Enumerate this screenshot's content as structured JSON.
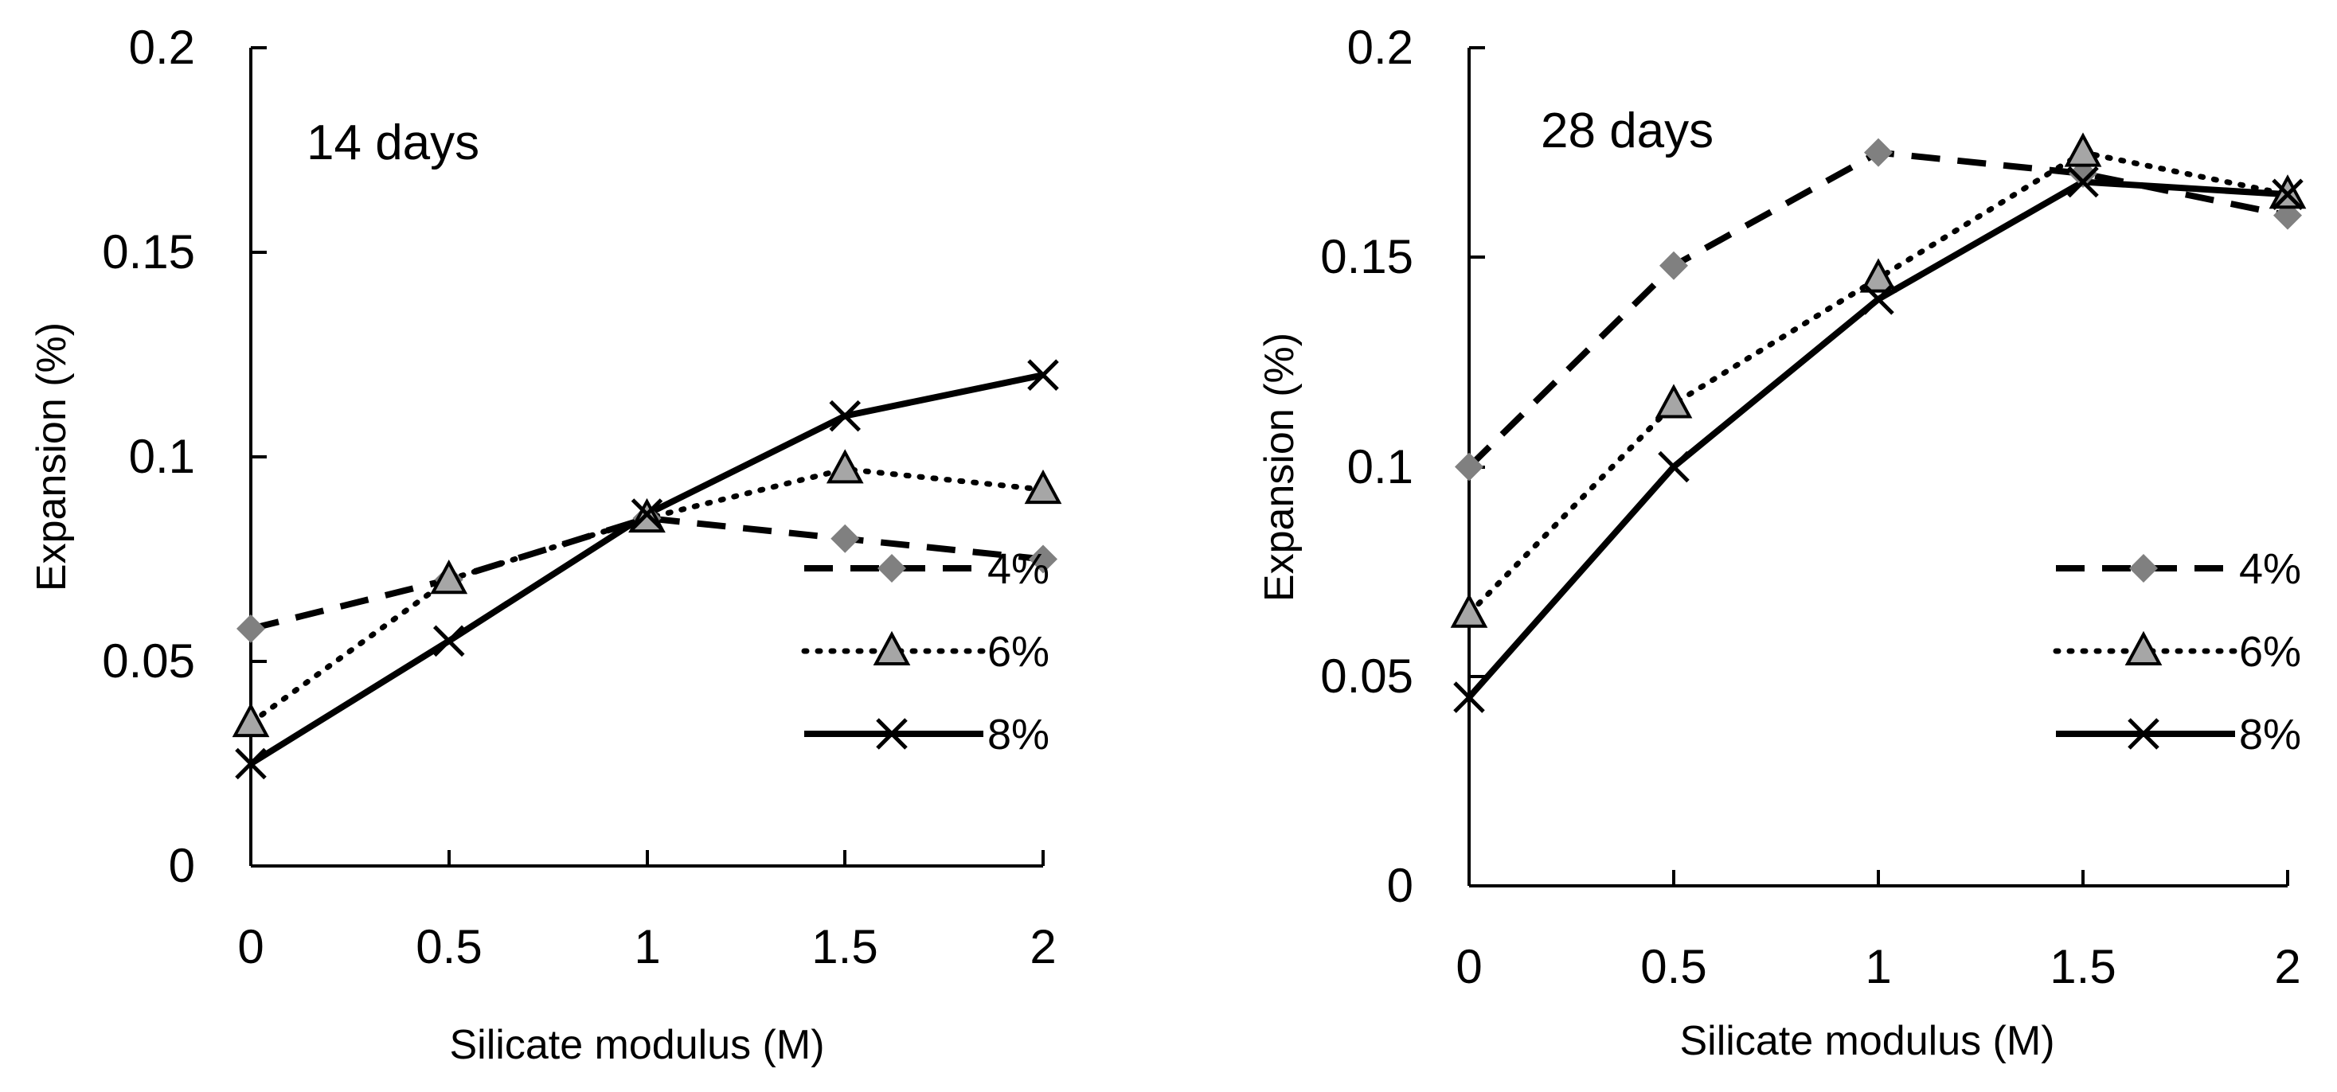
{
  "chart_data": [
    {
      "type": "line",
      "annotation": "14 days",
      "xlabel": "Silicate modulus (M)",
      "ylabel": "Expansion (%)",
      "x": [
        0,
        0.5,
        1,
        1.5,
        2
      ],
      "x_tick_labels": [
        "0",
        "0.5",
        "1",
        "1.5",
        "2"
      ],
      "ylim": [
        0,
        0.2
      ],
      "y_ticks": [
        0,
        0.05,
        0.1,
        0.15,
        0.2
      ],
      "y_tick_labels": [
        "0",
        "0.05",
        "0.1",
        "0.15",
        "0.2"
      ],
      "grid": false,
      "legend_position": "right",
      "series": [
        {
          "name": "4%",
          "values": [
            0.058,
            0.07,
            0.085,
            0.08,
            0.075
          ],
          "line_style": "dashed",
          "marker": "diamond",
          "color": "#808080"
        },
        {
          "name": "6%",
          "values": [
            0.035,
            0.07,
            0.085,
            0.097,
            0.092
          ],
          "line_style": "dotted",
          "marker": "triangle",
          "color": "#a6a6a6"
        },
        {
          "name": "8%",
          "values": [
            0.025,
            0.055,
            0.086,
            0.11,
            0.12
          ],
          "line_style": "solid",
          "marker": "x",
          "color": "#000000"
        }
      ]
    },
    {
      "type": "line",
      "annotation": "28 days",
      "xlabel": "Silicate modulus (M)",
      "ylabel": "Expansion (%)",
      "x": [
        0,
        0.5,
        1,
        1.5,
        2
      ],
      "x_tick_labels": [
        "0",
        "0.5",
        "1",
        "1.5",
        "2"
      ],
      "ylim": [
        0,
        0.2
      ],
      "y_ticks": [
        0,
        0.05,
        0.1,
        0.15,
        0.2
      ],
      "y_tick_labels": [
        "0",
        "0.05",
        "0.1",
        "0.15",
        "0.2"
      ],
      "grid": false,
      "legend_position": "right",
      "series": [
        {
          "name": "4%",
          "values": [
            0.1,
            0.148,
            0.175,
            0.17,
            0.16
          ],
          "line_style": "dashed",
          "marker": "diamond",
          "color": "#808080"
        },
        {
          "name": "6%",
          "values": [
            0.065,
            0.115,
            0.145,
            0.175,
            0.165
          ],
          "line_style": "dotted",
          "marker": "triangle",
          "color": "#a6a6a6"
        },
        {
          "name": "8%",
          "values": [
            0.045,
            0.1,
            0.14,
            0.168,
            0.165
          ],
          "line_style": "solid",
          "marker": "x",
          "color": "#000000"
        }
      ]
    }
  ]
}
